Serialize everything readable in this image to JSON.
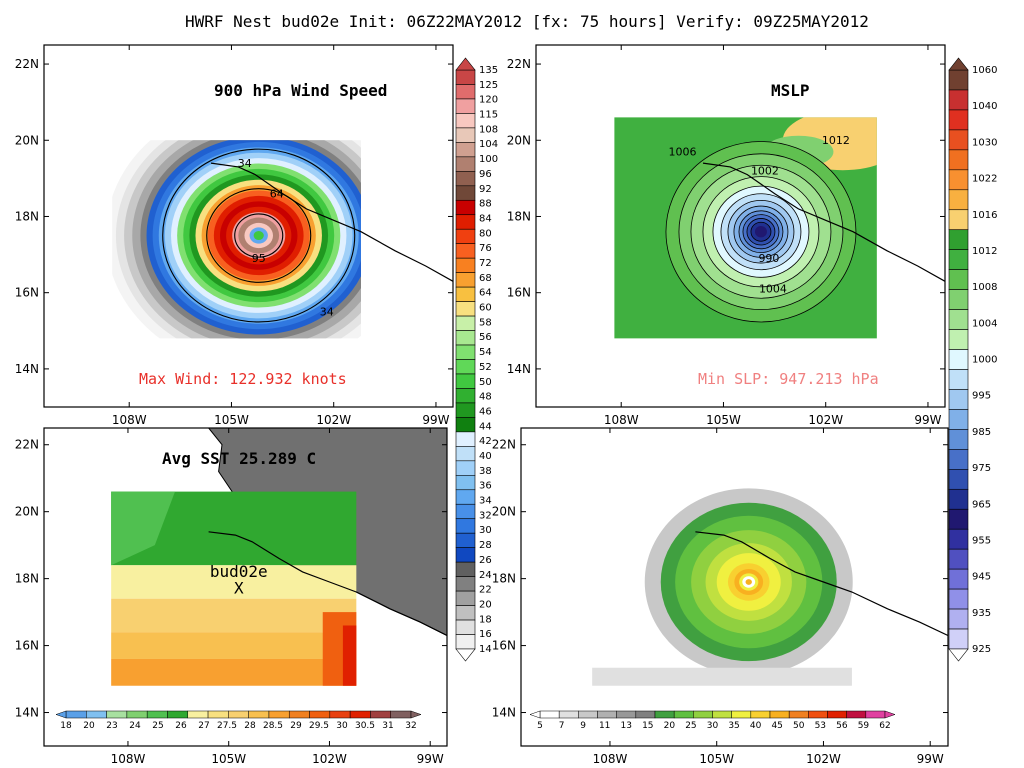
{
  "header": {
    "title": "HWRF Nest bud02e Init: 06Z22MAY2012 [fx: 75 hours] Verify: 09Z25MAY2012"
  },
  "axes": {
    "lat_labels": [
      "22N",
      "20N",
      "18N",
      "16N",
      "14N"
    ],
    "lon_labels": [
      "108W",
      "105W",
      "102W",
      "99W"
    ],
    "x_data_range": [
      -110.5,
      -98.5
    ],
    "y_data_range": [
      13,
      22.5
    ]
  },
  "panels": {
    "wind": {
      "title": "900 hPa Wind Speed",
      "stat": "Max Wind: 122.932 knots",
      "stat_color": "#e8302a",
      "contour_labels": [
        "34",
        "64",
        "95",
        "34"
      ]
    },
    "mslp": {
      "title": "MSLP",
      "stat": "Min SLP: 947.213 hPa",
      "stat_color": "#f08080",
      "contour_labels": [
        "1006",
        "1002",
        "990",
        "1004",
        "1012"
      ]
    },
    "sst": {
      "title": "Avg SST 25.289 C",
      "storm_label": "bud02e",
      "storm_marker": "X"
    },
    "precip": {
      "title": ""
    }
  },
  "colorbars": {
    "wind": {
      "labels": [
        "135",
        "125",
        "120",
        "115",
        "108",
        "104",
        "100",
        "96",
        "92",
        "88",
        "84",
        "80",
        "76",
        "72",
        "68",
        "64",
        "60",
        "58",
        "56",
        "54",
        "52",
        "50",
        "48",
        "46",
        "44",
        "42",
        "40",
        "38",
        "36",
        "34",
        "32",
        "30",
        "28",
        "26",
        "24",
        "22",
        "20",
        "18",
        "16",
        "14"
      ],
      "colors": [
        "#c84646",
        "#e06c6c",
        "#f0a0a0",
        "#f8c8c0",
        "#e8c8b8",
        "#d0a090",
        "#b08070",
        "#906050",
        "#704838",
        "#c80000",
        "#e01e00",
        "#f04010",
        "#f86020",
        "#f88020",
        "#f8a030",
        "#f8c040",
        "#f8e080",
        "#c8f0a8",
        "#a8e890",
        "#80e070",
        "#60d858",
        "#40c840",
        "#30b030",
        "#209820",
        "#108010",
        "#e0f0ff",
        "#c0e0f8",
        "#a0d0f8",
        "#80c0f0",
        "#60a8f0",
        "#4890e8",
        "#3078e0",
        "#2060d0",
        "#1048c0",
        "#606060",
        "#808080",
        "#a0a0a0",
        "#c0c0c0",
        "#e0e0e0",
        "#f0f0f0"
      ]
    },
    "mslp": {
      "labels": [
        "1060",
        "1040",
        "1030",
        "1022",
        "1016",
        "1012",
        "1008",
        "1004",
        "1000",
        "995",
        "985",
        "975",
        "965",
        "955",
        "945",
        "935",
        "925"
      ],
      "colors": [
        "#704030",
        "#c83030",
        "#e03020",
        "#e85020",
        "#f07020",
        "#f89030",
        "#f8b040",
        "#f8d070",
        "#30a030",
        "#40b040",
        "#60c050",
        "#80d070",
        "#a0e090",
        "#c0f0b0",
        "#e0f8ff",
        "#c0e0f8",
        "#a0c8f0",
        "#80b0e8",
        "#6090d8",
        "#4870c8",
        "#3050b0",
        "#203090",
        "#201870",
        "#3030a0",
        "#5050c0",
        "#7070d8",
        "#9090e8",
        "#b0b0f0",
        "#d0d0f8"
      ]
    },
    "sst": {
      "labels": [
        "18",
        "20",
        "23",
        "24",
        "25",
        "26",
        "27",
        "27.5",
        "28",
        "28.5",
        "29",
        "29.5",
        "30",
        "30.5",
        "31",
        "32"
      ],
      "colors": [
        "#5aa0e8",
        "#80c0f0",
        "#a8e0a0",
        "#80d070",
        "#50c050",
        "#30a830",
        "#f8f0a0",
        "#f8e080",
        "#f8d070",
        "#f8c050",
        "#f8a030",
        "#f08020",
        "#f06010",
        "#e84010",
        "#e02000",
        "#a04040",
        "#806060"
      ]
    },
    "precip": {
      "labels": [
        "5",
        "7",
        "9",
        "11",
        "13",
        "15",
        "20",
        "25",
        "30",
        "35",
        "40",
        "45",
        "50",
        "53",
        "56",
        "59",
        "62"
      ],
      "colors": [
        "#ffffff",
        "#e0e0e0",
        "#c8c8c8",
        "#b0b0b0",
        "#989898",
        "#808080",
        "#40a040",
        "#60c040",
        "#90d040",
        "#c0e040",
        "#f0f040",
        "#f8d030",
        "#f8b020",
        "#f08020",
        "#f05010",
        "#e02000",
        "#c01040",
        "#e040a0"
      ]
    }
  }
}
